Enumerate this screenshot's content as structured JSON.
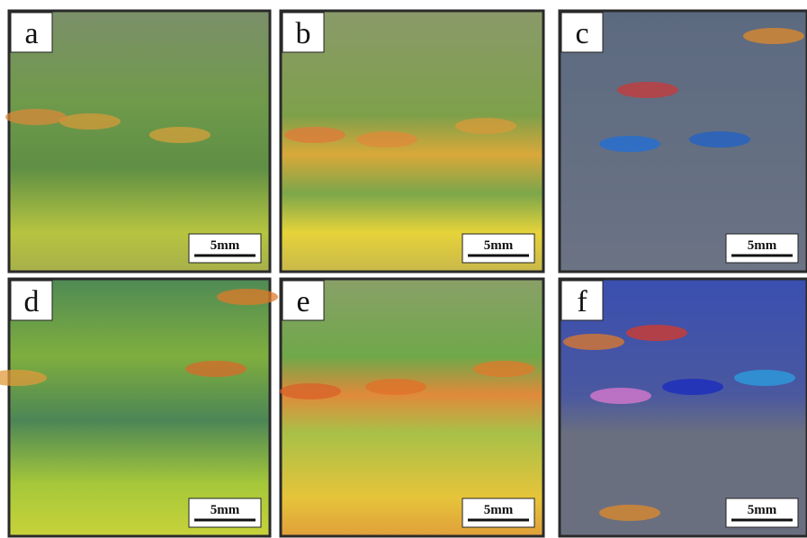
{
  "panels": [
    {
      "label": "a",
      "scale": "5mm"
    },
    {
      "label": "b",
      "scale": "5mm"
    },
    {
      "label": "c",
      "scale": "5mm"
    },
    {
      "label": "d",
      "scale": "5mm"
    },
    {
      "label": "e",
      "scale": "5mm"
    },
    {
      "label": "f",
      "scale": "5mm"
    }
  ]
}
